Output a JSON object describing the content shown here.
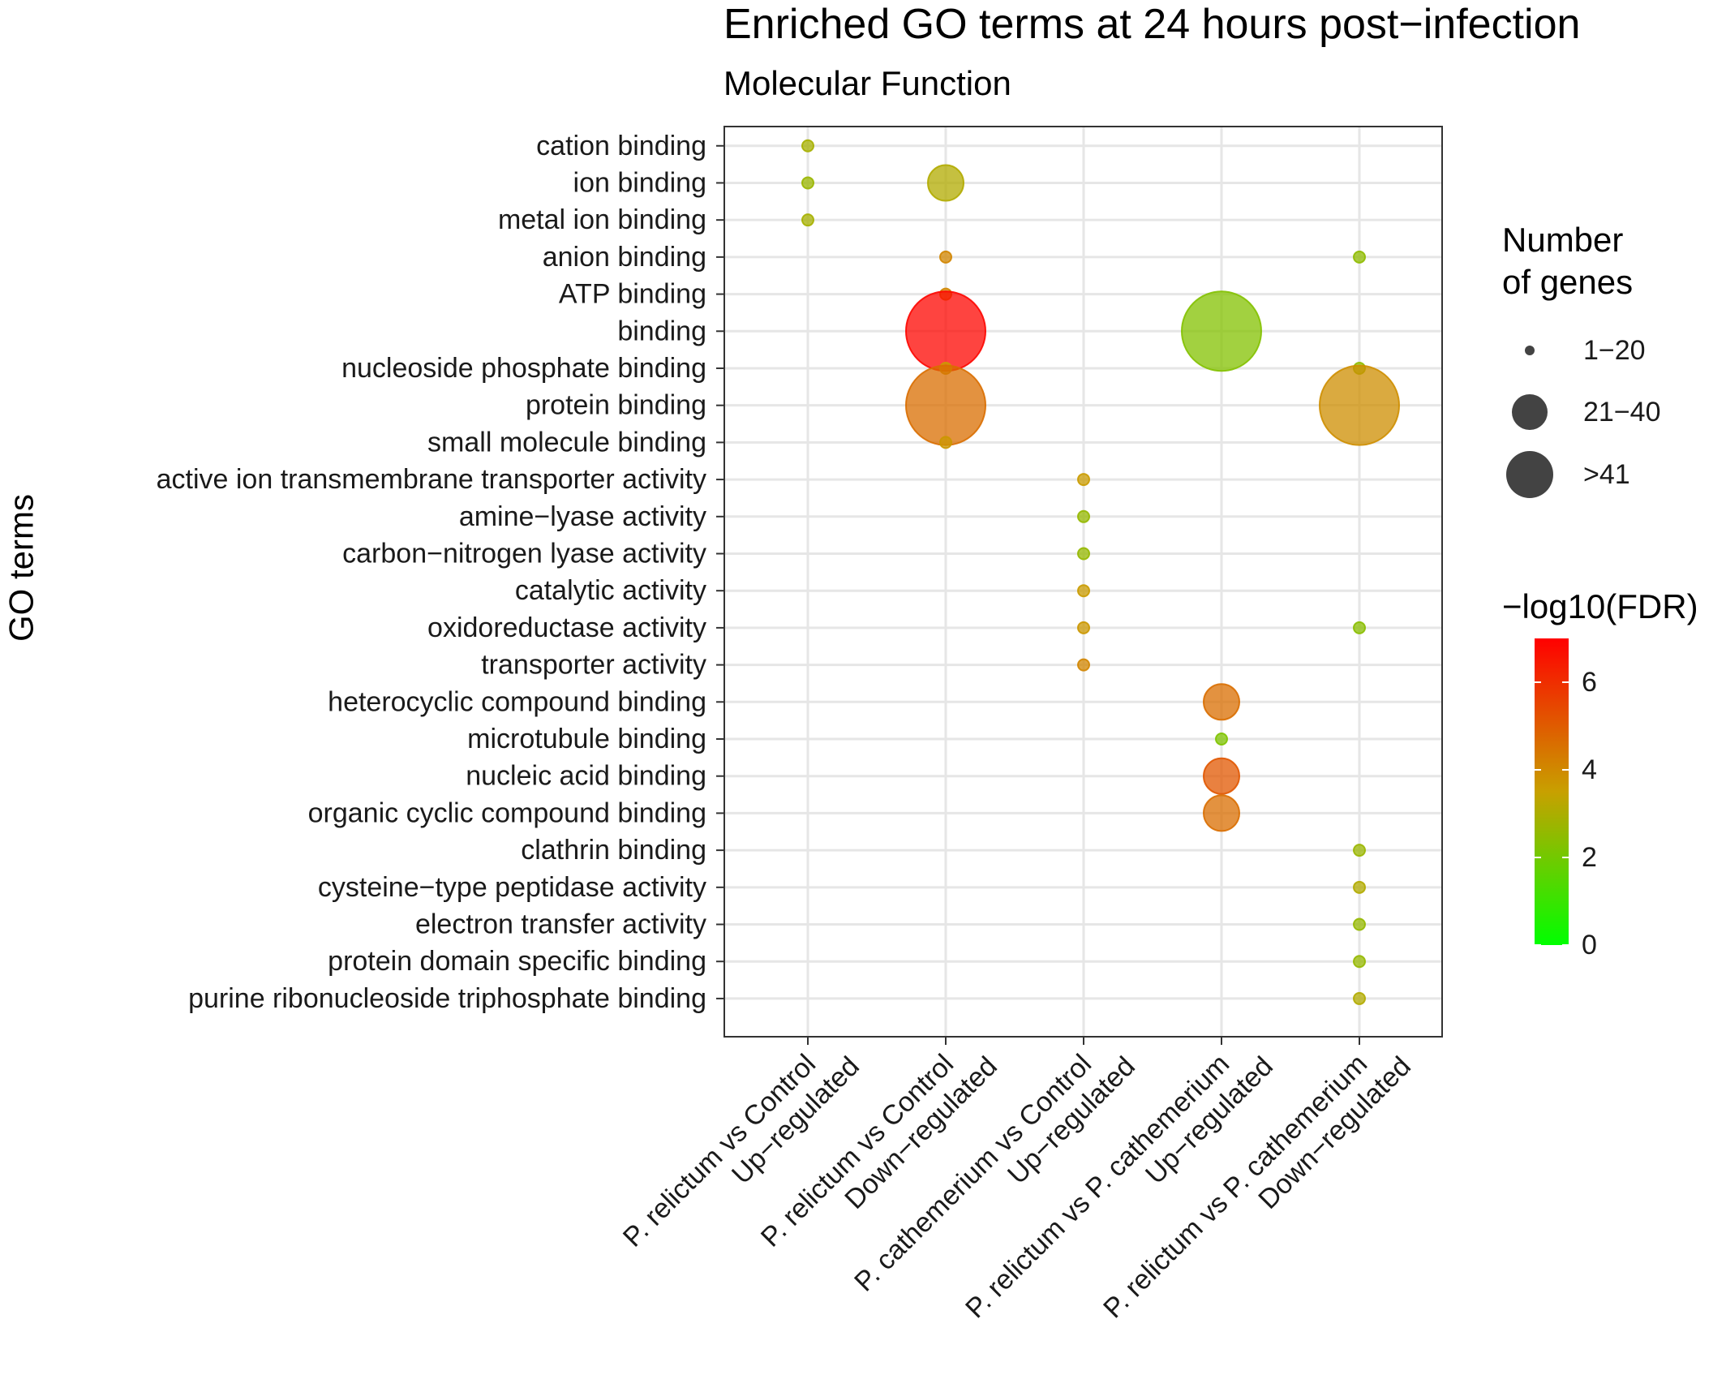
{
  "chart_data": {
    "type": "scatter",
    "title": "Enriched GO terms at 24 hours post−infection",
    "subtitle": "Molecular Function",
    "ylabel": "GO terms",
    "xlabel": "",
    "grid": true,
    "legend_placement": "right",
    "x_categories": [
      {
        "line1": "P. relictum vs Control",
        "line2": "Up−regulated"
      },
      {
        "line1": "P. relictum vs Control",
        "line2": "Down−regulated"
      },
      {
        "line1": "P. cathemerium vs Control",
        "line2": "Up−regulated"
      },
      {
        "line1": "P. relictum vs P. cathemerium",
        "line2": "Up−regulated"
      },
      {
        "line1": "P. relictum vs P. cathemerium",
        "line2": "Down−regulated"
      }
    ],
    "y_categories": [
      "cation binding",
      "ion binding",
      "metal ion binding",
      "anion binding",
      "ATP binding",
      "binding",
      "nucleoside phosphate binding",
      "protein binding",
      "small molecule binding",
      "active ion transmembrane transporter activity",
      "amine−lyase activity",
      "carbon−nitrogen lyase activity",
      "catalytic activity",
      "oxidoreductase activity",
      "transporter activity",
      "heterocyclic compound binding",
      "microtubule binding",
      "nucleic acid binding",
      "organic cyclic compound binding",
      "clathrin binding",
      "cysteine−type peptidase activity",
      "electron transfer activity",
      "protein domain specific binding",
      "purine ribonucleoside triphosphate binding"
    ],
    "size_legend": {
      "title_line1": "Number",
      "title_line2": "of genes",
      "classes": [
        "1−20",
        "21−40",
        ">41"
      ]
    },
    "color_legend": {
      "title": "−log10(FDR)",
      "min": 0,
      "max": 7,
      "ticks": [
        {
          "value": 0,
          "label": "0"
        },
        {
          "value": 2,
          "label": "2"
        },
        {
          "value": 4,
          "label": "4"
        },
        {
          "value": 6,
          "label": "6"
        }
      ],
      "low_color": "#00ff00",
      "high_color": "#ff0000"
    },
    "points": [
      {
        "x": 0,
        "y": "cation binding",
        "size_class": 0,
        "fdr": 2.9
      },
      {
        "x": 0,
        "y": "ion binding",
        "size_class": 0,
        "fdr": 2.7
      },
      {
        "x": 0,
        "y": "metal ion binding",
        "size_class": 0,
        "fdr": 2.9
      },
      {
        "x": 1,
        "y": "ion binding",
        "size_class": 1,
        "fdr": 3.1
      },
      {
        "x": 1,
        "y": "anion binding",
        "size_class": 0,
        "fdr": 4.1
      },
      {
        "x": 1,
        "y": "ATP binding",
        "size_class": 0,
        "fdr": 4.1
      },
      {
        "x": 1,
        "y": "binding",
        "size_class": 2,
        "fdr": 6.9
      },
      {
        "x": 1,
        "y": "nucleoside phosphate binding",
        "size_class": 0,
        "fdr": 3.6
      },
      {
        "x": 1,
        "y": "protein binding",
        "size_class": 2,
        "fdr": 4.6
      },
      {
        "x": 1,
        "y": "small molecule binding",
        "size_class": 0,
        "fdr": 3.7
      },
      {
        "x": 2,
        "y": "active ion transmembrane transporter activity",
        "size_class": 0,
        "fdr": 3.6
      },
      {
        "x": 2,
        "y": "amine−lyase activity",
        "size_class": 0,
        "fdr": 2.6
      },
      {
        "x": 2,
        "y": "carbon−nitrogen lyase activity",
        "size_class": 0,
        "fdr": 2.6
      },
      {
        "x": 2,
        "y": "catalytic activity",
        "size_class": 0,
        "fdr": 3.6
      },
      {
        "x": 2,
        "y": "oxidoreductase activity",
        "size_class": 0,
        "fdr": 3.7
      },
      {
        "x": 2,
        "y": "transporter activity",
        "size_class": 0,
        "fdr": 4.1
      },
      {
        "x": 3,
        "y": "binding",
        "size_class": 2,
        "fdr": 2.3
      },
      {
        "x": 3,
        "y": "heterocyclic compound binding",
        "size_class": 1,
        "fdr": 4.6
      },
      {
        "x": 3,
        "y": "microtubule binding",
        "size_class": 0,
        "fdr": 2.2
      },
      {
        "x": 3,
        "y": "nucleic acid binding",
        "size_class": 1,
        "fdr": 5.1
      },
      {
        "x": 3,
        "y": "organic cyclic compound binding",
        "size_class": 1,
        "fdr": 4.6
      },
      {
        "x": 4,
        "y": "anion binding",
        "size_class": 0,
        "fdr": 2.5
      },
      {
        "x": 4,
        "y": "nucleoside phosphate binding",
        "size_class": 0,
        "fdr": 2.5
      },
      {
        "x": 4,
        "y": "protein binding",
        "size_class": 2,
        "fdr": 3.9
      },
      {
        "x": 4,
        "y": "oxidoreductase activity",
        "size_class": 0,
        "fdr": 2.4
      },
      {
        "x": 4,
        "y": "clathrin binding",
        "size_class": 0,
        "fdr": 2.7
      },
      {
        "x": 4,
        "y": "cysteine−type peptidase activity",
        "size_class": 0,
        "fdr": 3.1
      },
      {
        "x": 4,
        "y": "electron transfer activity",
        "size_class": 0,
        "fdr": 2.6
      },
      {
        "x": 4,
        "y": "protein domain specific binding",
        "size_class": 0,
        "fdr": 2.6
      },
      {
        "x": 4,
        "y": "purine ribonucleoside triphosphate binding",
        "size_class": 0,
        "fdr": 3.1
      }
    ]
  }
}
